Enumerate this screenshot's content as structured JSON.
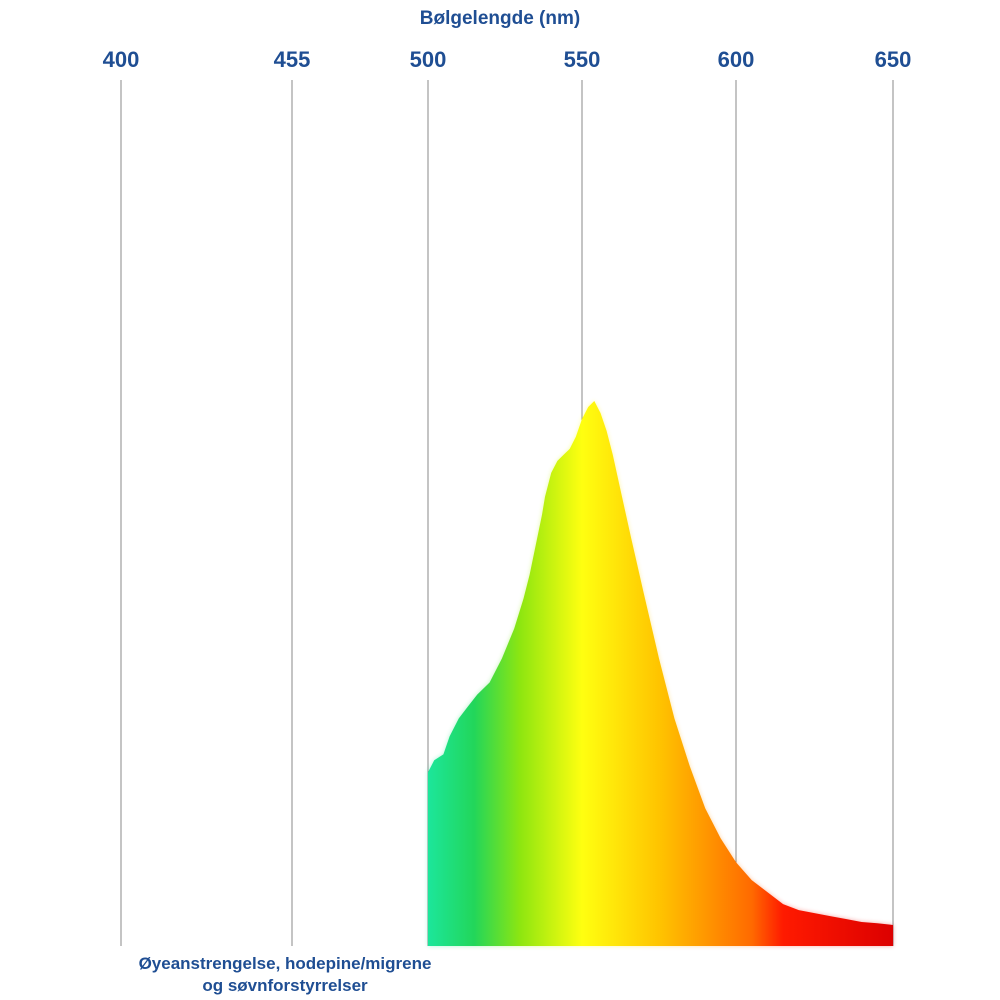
{
  "chart_data": {
    "type": "area",
    "title": "Bølgelengde (nm)",
    "xticks": [
      400,
      455,
      500,
      550,
      600,
      650
    ],
    "xlim": [
      400,
      650
    ],
    "ylim": [
      0,
      1
    ],
    "grid": "vertical",
    "series": [
      {
        "x": [
          500,
          502,
          505,
          507,
          510,
          513,
          516,
          520,
          524,
          528,
          531,
          533,
          535,
          537,
          538,
          540,
          542,
          544,
          546,
          548,
          550,
          552,
          554,
          556,
          558,
          560,
          563,
          566,
          570,
          575,
          580,
          585,
          590,
          595,
          600,
          605,
          610,
          615,
          620,
          625,
          630,
          635,
          640,
          645,
          650
        ],
        "values": [
          0.29,
          0.31,
          0.32,
          0.35,
          0.38,
          0.4,
          0.42,
          0.44,
          0.48,
          0.53,
          0.58,
          0.62,
          0.67,
          0.72,
          0.75,
          0.79,
          0.81,
          0.82,
          0.83,
          0.85,
          0.88,
          0.9,
          0.91,
          0.89,
          0.86,
          0.82,
          0.75,
          0.68,
          0.59,
          0.48,
          0.38,
          0.3,
          0.23,
          0.18,
          0.14,
          0.11,
          0.09,
          0.07,
          0.06,
          0.055,
          0.05,
          0.045,
          0.04,
          0.038,
          0.035
        ]
      }
    ],
    "gradient_stops": [
      {
        "nm": 500,
        "color": "#1ce69b"
      },
      {
        "nm": 515,
        "color": "#22d65a"
      },
      {
        "nm": 530,
        "color": "#8ee610"
      },
      {
        "nm": 550,
        "color": "#ffff10"
      },
      {
        "nm": 575,
        "color": "#ffc400"
      },
      {
        "nm": 605,
        "color": "#ff6a00"
      },
      {
        "nm": 615,
        "color": "#ff1a00"
      },
      {
        "nm": 650,
        "color": "#dc0000"
      }
    ],
    "annotation": "Øyeanstrengelse, hodepine/migrene\nog søvnforstyrrelser"
  },
  "caption_lines": [
    "Øyeanstrengelse, hodepine/migrene",
    "og søvnforstyrrelser"
  ]
}
